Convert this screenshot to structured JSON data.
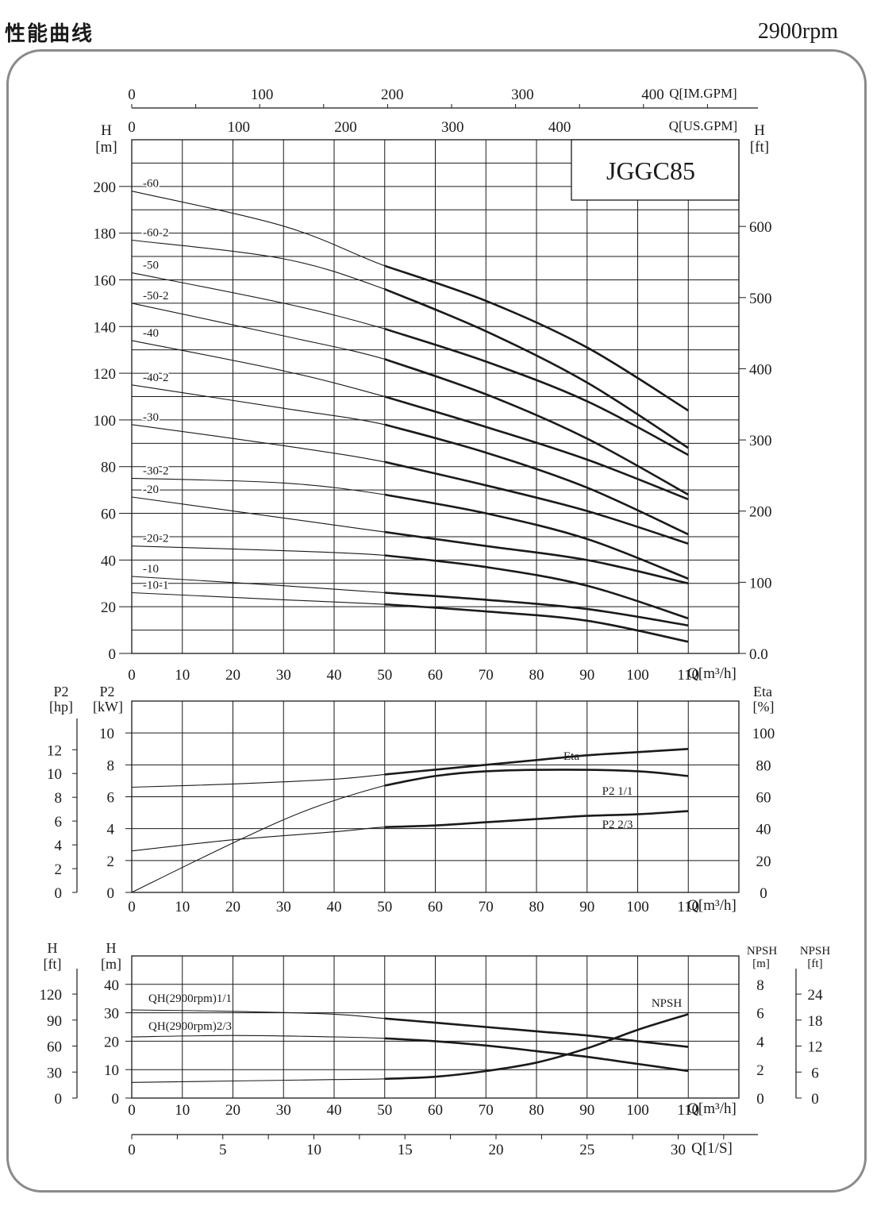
{
  "header": {
    "title": "性能曲线",
    "speed": "2900rpm"
  },
  "chart_data": [
    {
      "id": "head-flow",
      "type": "line",
      "model_label": "JGGC85",
      "x_label": "Q[m³/h]",
      "x_ticks": [
        0,
        10,
        20,
        30,
        40,
        50,
        60,
        70,
        80,
        90,
        100,
        110
      ],
      "xlim": [
        0,
        120
      ],
      "y_label_left": [
        "H",
        "[m]"
      ],
      "ylim": [
        0,
        220
      ],
      "y_ticks_left": [
        0,
        20,
        40,
        60,
        80,
        100,
        120,
        140,
        160,
        180,
        200
      ],
      "y_label_right": [
        "H",
        "[ft]"
      ],
      "y_ticks_right": [
        "0",
        "100",
        "200",
        "300",
        "400",
        "500",
        "600"
      ],
      "y_tick_right_zero_suffix": ".0",
      "top_axis_us": {
        "label": "Q[US.GPM]",
        "ticks": [
          0,
          100,
          200,
          300,
          400
        ]
      },
      "top_axis_im": {
        "label": "Q[IM.GPM]",
        "ticks": [
          0,
          100,
          200,
          300,
          400
        ]
      },
      "grid": true,
      "series": [
        {
          "name": "-60",
          "x": [
            0,
            30,
            50,
            70,
            90,
            110
          ],
          "y": [
            198,
            183,
            166,
            151,
            131,
            104
          ]
        },
        {
          "name": "-60-2",
          "x": [
            0,
            30,
            50,
            70,
            90,
            110
          ],
          "y": [
            177,
            169,
            156,
            138,
            116,
            88
          ]
        },
        {
          "name": "-50",
          "x": [
            0,
            30,
            50,
            70,
            90,
            110
          ],
          "y": [
            163,
            150,
            139,
            125,
            108,
            85
          ]
        },
        {
          "name": "-50-2",
          "x": [
            0,
            30,
            50,
            70,
            90,
            110
          ],
          "y": [
            150,
            136,
            126,
            111,
            92,
            68
          ]
        },
        {
          "name": "-40",
          "x": [
            0,
            30,
            50,
            70,
            90,
            110
          ],
          "y": [
            134,
            121,
            110,
            97,
            83,
            66
          ]
        },
        {
          "name": "-40-2",
          "x": [
            0,
            30,
            50,
            70,
            90,
            110
          ],
          "y": [
            115,
            105,
            98,
            86,
            71,
            51
          ]
        },
        {
          "name": "-30",
          "x": [
            0,
            30,
            50,
            70,
            90,
            110
          ],
          "y": [
            98,
            89,
            82,
            72,
            61,
            47
          ]
        },
        {
          "name": "-30-2",
          "x": [
            0,
            30,
            50,
            70,
            90,
            110
          ],
          "y": [
            75,
            73,
            68,
            60,
            49,
            32
          ]
        },
        {
          "name": "-20",
          "x": [
            0,
            30,
            50,
            70,
            90,
            110
          ],
          "y": [
            67,
            58,
            52,
            46,
            40,
            30
          ]
        },
        {
          "name": "-20-2",
          "x": [
            0,
            30,
            50,
            70,
            90,
            110
          ],
          "y": [
            46,
            44,
            42,
            37,
            29,
            15
          ]
        },
        {
          "name": "-10",
          "x": [
            0,
            30,
            50,
            70,
            90,
            110
          ],
          "y": [
            33,
            29,
            26,
            23,
            19,
            12
          ]
        },
        {
          "name": "-10-1",
          "x": [
            0,
            30,
            50,
            70,
            90,
            110
          ],
          "y": [
            26,
            23,
            21,
            18,
            14,
            5
          ]
        }
      ]
    },
    {
      "id": "power-efficiency",
      "type": "line",
      "x_label": "Q[m³/h]",
      "x_ticks": [
        0,
        10,
        20,
        30,
        40,
        50,
        60,
        70,
        80,
        90,
        100,
        110
      ],
      "xlim": [
        0,
        120
      ],
      "y_label_kw": [
        "P2",
        "[kW]"
      ],
      "ylim_kw": [
        0,
        12
      ],
      "y_ticks_kw": [
        0,
        2,
        4,
        6,
        8,
        10
      ],
      "y_label_hp": [
        "P2",
        "[hp]"
      ],
      "y_ticks_hp": [
        0,
        2,
        4,
        6,
        8,
        10,
        12
      ],
      "y_label_eta": [
        "Eta",
        "[%]"
      ],
      "ylim_eta": [
        0,
        120
      ],
      "y_ticks_eta": [
        0,
        20,
        40,
        60,
        80,
        100
      ],
      "grid": true,
      "series": [
        {
          "name": "Eta",
          "axis": "eta",
          "x": [
            0,
            20,
            35,
            50,
            60,
            70,
            85,
            100,
            110
          ],
          "y": [
            0,
            31,
            52,
            67,
            73,
            76,
            77,
            76,
            73
          ]
        },
        {
          "name": "P2 1/1",
          "axis": "kw",
          "x": [
            0,
            20,
            40,
            50,
            60,
            70,
            80,
            90,
            100,
            110
          ],
          "y": [
            6.6,
            6.8,
            7.1,
            7.4,
            7.7,
            8.0,
            8.3,
            8.6,
            8.8,
            9.0
          ]
        },
        {
          "name": "P2 2/3",
          "axis": "kw",
          "x": [
            0,
            20,
            40,
            50,
            60,
            70,
            80,
            90,
            100,
            110
          ],
          "y": [
            2.6,
            3.3,
            3.8,
            4.1,
            4.2,
            4.4,
            4.6,
            4.8,
            4.9,
            5.1
          ]
        }
      ]
    },
    {
      "id": "npsh",
      "type": "line",
      "x_label": "Q[m³/h]",
      "x_ticks": [
        0,
        10,
        20,
        30,
        40,
        50,
        60,
        70,
        80,
        90,
        100,
        110
      ],
      "xlim": [
        0,
        120
      ],
      "x2_label": "Q[1/S]",
      "x2_ticks": [
        0,
        5,
        10,
        15,
        20,
        25,
        30
      ],
      "y_label_m": [
        "H",
        "[m]"
      ],
      "ylim_m": [
        0,
        50
      ],
      "y_ticks_m": [
        0,
        10,
        20,
        30,
        40
      ],
      "y_label_ft": [
        "H",
        "[ft]"
      ],
      "y_ticks_ft": [
        0,
        30,
        60,
        90,
        120
      ],
      "y_label_npsh_m": [
        "NPSH",
        "[m]"
      ],
      "ylim_npsh_m": [
        0,
        10
      ],
      "y_ticks_npsh_m": [
        0,
        2,
        4,
        6,
        8
      ],
      "y_label_npsh_ft": [
        "NPSH",
        "[ft]"
      ],
      "y_ticks_npsh_ft": [
        0,
        6,
        12,
        18,
        24
      ],
      "grid": true,
      "series": [
        {
          "name": "QH(2900rpm)1/1",
          "axis": "m",
          "x": [
            0,
            20,
            40,
            50,
            60,
            70,
            80,
            90,
            100,
            110
          ],
          "y": [
            31,
            30.5,
            29.5,
            28,
            26.5,
            25,
            23.5,
            22,
            20,
            18
          ]
        },
        {
          "name": "QH(2900rpm)2/3",
          "axis": "m",
          "x": [
            0,
            20,
            40,
            50,
            60,
            70,
            80,
            90,
            100,
            110
          ],
          "y": [
            21.5,
            22,
            21.5,
            21,
            20,
            18.5,
            16.5,
            14.5,
            12,
            9.5
          ]
        },
        {
          "name": "NPSH",
          "axis": "npsh",
          "x": [
            0,
            20,
            40,
            50,
            60,
            70,
            80,
            90,
            100,
            110
          ],
          "y": [
            1.1,
            1.2,
            1.3,
            1.35,
            1.5,
            1.9,
            2.5,
            3.5,
            4.8,
            5.9
          ]
        }
      ]
    }
  ]
}
